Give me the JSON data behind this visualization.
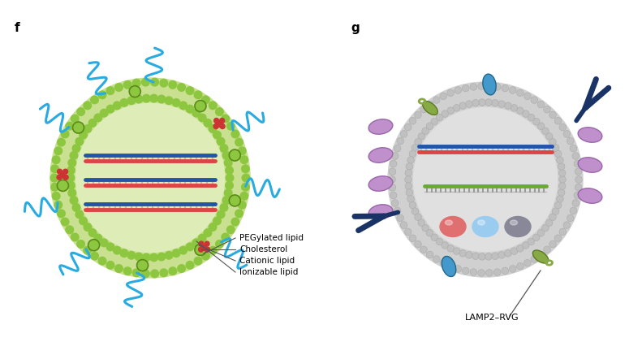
{
  "bg_color": "#ffffff",
  "label_f": "f",
  "label_g": "g",
  "annotations_f": [
    "Ionizable lipid",
    "Cationic lipid",
    "Cholesterol",
    "PEGylated lipid"
  ],
  "annotation_g": "LAMP2–RVG",
  "lnp_fill": "#deedb8",
  "lnp_head_color": "#8dc63f",
  "lnp_head_dark": "#5a8a1a",
  "lnp_tail_color": "#c8e090",
  "ionizable_color": "#8dc63f",
  "cationic_color": "#cc3333",
  "peg_color": "#29abe2",
  "dna_blue": "#2255aa",
  "dna_red": "#dd4444",
  "dna_rung": "#bbbbbb",
  "exo_fill": "#e0e0e0",
  "exo_head": "#c0c0c0",
  "exo_tail": "#d0d0d0",
  "helix_purple": "#c090cc",
  "helix_purple_dark": "#9966aa",
  "green_protein": "#88aa44",
  "blue_protein": "#4499cc",
  "dark_blue": "#1a3366",
  "sphere_red": "#e07070",
  "sphere_blue": "#99ccee",
  "sphere_gray": "#888899",
  "dna_green": "#6aaa33",
  "annot_line_color": "#555555"
}
